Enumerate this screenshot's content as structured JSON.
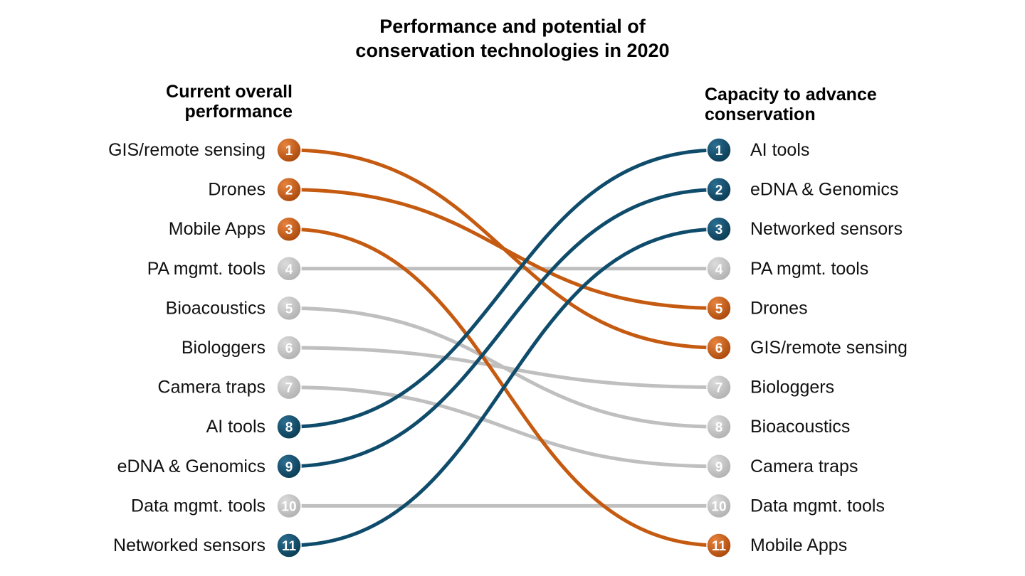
{
  "chart_data": {
    "type": "slope",
    "title_lines": [
      "Performance and potential of",
      "conservation technologies in 2020"
    ],
    "left_heading_lines": [
      "Current overall",
      "performance"
    ],
    "right_heading_lines": [
      "Capacity to advance",
      "conservation"
    ],
    "colors": {
      "high_performance": "#c55a11",
      "high_potential": "#0f4c6b",
      "other": "#bfbfbf"
    },
    "left_ranking": [
      {
        "rank": 1,
        "label": "GIS/remote sensing"
      },
      {
        "rank": 2,
        "label": "Drones"
      },
      {
        "rank": 3,
        "label": "Mobile Apps"
      },
      {
        "rank": 4,
        "label": "PA mgmt. tools"
      },
      {
        "rank": 5,
        "label": "Bioacoustics"
      },
      {
        "rank": 6,
        "label": "Biologgers"
      },
      {
        "rank": 7,
        "label": "Camera traps"
      },
      {
        "rank": 8,
        "label": "AI tools"
      },
      {
        "rank": 9,
        "label": "eDNA & Genomics"
      },
      {
        "rank": 10,
        "label": "Data mgmt. tools"
      },
      {
        "rank": 11,
        "label": "Networked sensors"
      }
    ],
    "right_ranking": [
      {
        "rank": 1,
        "label": "AI tools"
      },
      {
        "rank": 2,
        "label": "eDNA & Genomics"
      },
      {
        "rank": 3,
        "label": "Networked sensors"
      },
      {
        "rank": 4,
        "label": "PA mgmt. tools"
      },
      {
        "rank": 5,
        "label": "Drones"
      },
      {
        "rank": 6,
        "label": "GIS/remote sensing"
      },
      {
        "rank": 7,
        "label": "Biologgers"
      },
      {
        "rank": 8,
        "label": "Bioacoustics"
      },
      {
        "rank": 9,
        "label": "Camera traps"
      },
      {
        "rank": 10,
        "label": "Data mgmt. tools"
      },
      {
        "rank": 11,
        "label": "Mobile Apps"
      }
    ],
    "connections": [
      {
        "from": 1,
        "to": 6,
        "group": "high_performance"
      },
      {
        "from": 2,
        "to": 5,
        "group": "high_performance"
      },
      {
        "from": 3,
        "to": 11,
        "group": "high_performance"
      },
      {
        "from": 4,
        "to": 4,
        "group": "other"
      },
      {
        "from": 5,
        "to": 8,
        "group": "other"
      },
      {
        "from": 6,
        "to": 7,
        "group": "other"
      },
      {
        "from": 7,
        "to": 9,
        "group": "other"
      },
      {
        "from": 8,
        "to": 1,
        "group": "high_potential"
      },
      {
        "from": 9,
        "to": 2,
        "group": "high_potential"
      },
      {
        "from": 10,
        "to": 10,
        "group": "other"
      },
      {
        "from": 11,
        "to": 3,
        "group": "high_potential"
      }
    ]
  }
}
